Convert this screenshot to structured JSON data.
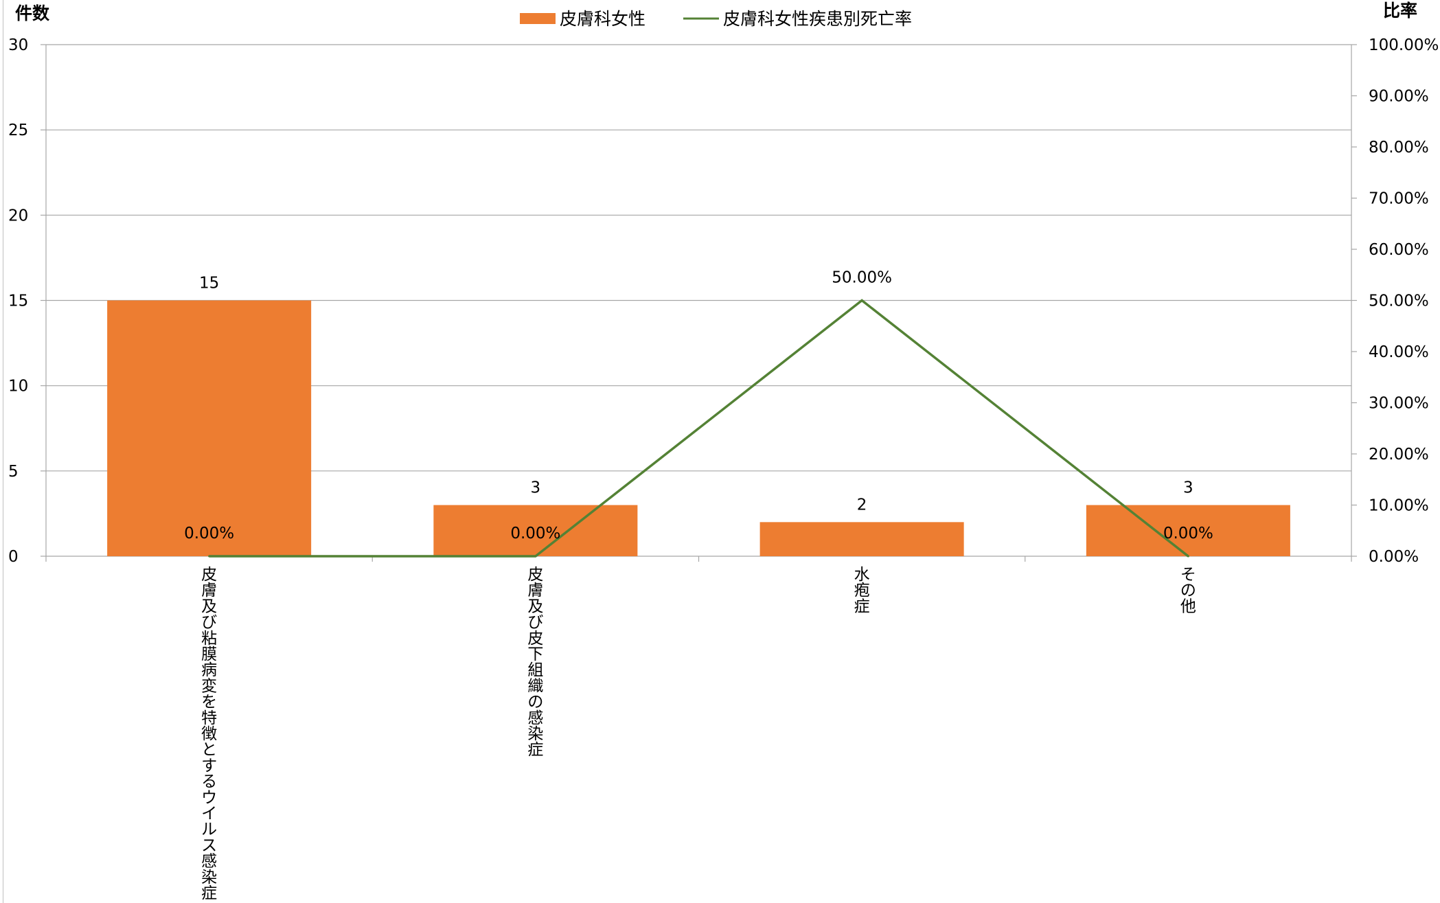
{
  "chart_data": {
    "type": "bar",
    "categories": [
      "皮膚及び粘膜病変を特徴とするウイルス感染症",
      "皮膚及び皮下組織の感染症",
      "水疱症",
      "その他"
    ],
    "series": [
      {
        "name": "皮膚科女性",
        "kind": "bar",
        "axis": "left",
        "color": "#ED7D31",
        "values": [
          15,
          3,
          2,
          3
        ],
        "labels": [
          "15",
          "3",
          "2",
          "3"
        ]
      },
      {
        "name": "皮膚科女性疾患別死亡率",
        "kind": "line",
        "axis": "right",
        "color": "#548235",
        "values": [
          0,
          0,
          50,
          0
        ],
        "labels": [
          "0.00%",
          "0.00%",
          "50.00%",
          "0.00%"
        ]
      }
    ],
    "ylabel": "件数",
    "y2label": "比率",
    "ylim": [
      0,
      30
    ],
    "yticks": [
      "0",
      "5",
      "10",
      "15",
      "20",
      "25",
      "30"
    ],
    "y2lim": [
      0,
      100
    ],
    "y2ticks": [
      "0.00%",
      "10.00%",
      "20.00%",
      "30.00%",
      "40.00%",
      "50.00%",
      "60.00%",
      "70.00%",
      "80.00%",
      "90.00%",
      "100.00%"
    ],
    "grid": true,
    "legend": "top-center"
  }
}
